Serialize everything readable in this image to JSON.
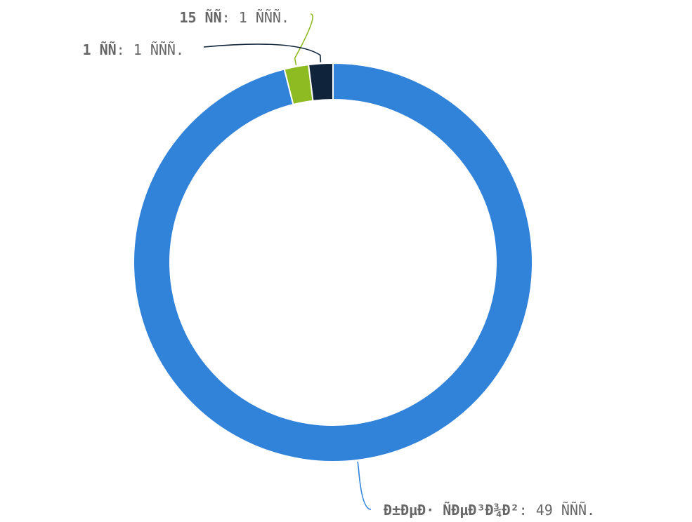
{
  "chart_data": {
    "type": "pie",
    "variant": "donut",
    "legend": "none",
    "labels": [
      "Ð±ÐµÐ· ÑÐµÐ³Ð¾Ð²",
      "15 ÑÑ",
      "1 ÑÑ"
    ],
    "values": [
      49,
      1,
      1
    ],
    "value_labels": [
      "49 ÑÑÑ.",
      "1 ÑÑÑ.",
      "1 ÑÑÑ."
    ],
    "colors": [
      "#3182d9",
      "#8ebb22",
      "#0f233a"
    ],
    "label_text_color": "#666666",
    "background": "#ffffff"
  }
}
